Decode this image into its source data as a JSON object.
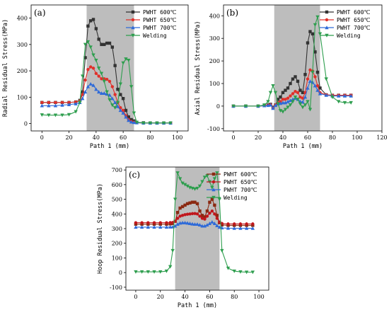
{
  "chart_data": [
    {
      "type": "line",
      "panel_label": "(a)",
      "xlabel": "Path 1 (mm)",
      "ylabel": "Radial Residual Stress(MPa)",
      "xlim": [
        -8,
        108
      ],
      "ylim": [
        -28,
        450
      ],
      "xticks": [
        0,
        20,
        40,
        60,
        80,
        100
      ],
      "yticks": [
        0,
        100,
        200,
        300,
        400
      ],
      "shaded_region": [
        33,
        68
      ],
      "legend_position": "top-right",
      "series": [
        {
          "name": "PWHT 600℃",
          "color": "#333333",
          "marker": "square",
          "x": [
            0,
            5,
            10,
            15,
            20,
            25,
            28,
            30,
            32,
            34,
            36,
            38,
            40,
            42,
            44,
            46,
            48,
            50,
            52,
            54,
            56,
            58,
            60,
            62,
            64,
            66,
            68,
            70,
            75,
            80,
            85,
            90,
            95
          ],
          "y": [
            80,
            80,
            80,
            80,
            80,
            82,
            88,
            120,
            250,
            370,
            390,
            395,
            360,
            320,
            300,
            300,
            305,
            305,
            290,
            220,
            130,
            110,
            95,
            50,
            25,
            15,
            10,
            5,
            3,
            2,
            2,
            2,
            2
          ]
        },
        {
          "name": "PWHT 650℃",
          "color": "#e0302a",
          "marker": "circle",
          "x": [
            0,
            5,
            10,
            15,
            20,
            25,
            28,
            30,
            32,
            34,
            36,
            38,
            40,
            42,
            44,
            46,
            48,
            50,
            52,
            54,
            56,
            58,
            60,
            62,
            64,
            66,
            68,
            70,
            75,
            80,
            85,
            90,
            95
          ],
          "y": [
            80,
            80,
            80,
            80,
            80,
            82,
            86,
            110,
            165,
            205,
            215,
            210,
            190,
            180,
            170,
            170,
            168,
            160,
            140,
            110,
            80,
            60,
            50,
            30,
            15,
            8,
            5,
            3,
            2,
            2,
            2,
            2,
            2
          ]
        },
        {
          "name": "PWHT 700℃",
          "color": "#2f6bd8",
          "marker": "triangle",
          "x": [
            0,
            5,
            10,
            15,
            20,
            25,
            28,
            30,
            32,
            34,
            36,
            38,
            40,
            42,
            44,
            46,
            48,
            50,
            52,
            54,
            56,
            58,
            60,
            62,
            64,
            66,
            68,
            70,
            75,
            80,
            85,
            90,
            95
          ],
          "y": [
            68,
            68,
            68,
            70,
            72,
            75,
            80,
            95,
            120,
            140,
            150,
            145,
            130,
            120,
            115,
            115,
            112,
            108,
            95,
            80,
            65,
            50,
            40,
            25,
            12,
            6,
            4,
            3,
            2,
            2,
            2,
            2,
            2
          ]
        },
        {
          "name": "Welding",
          "color": "#2e9e4e",
          "marker": "down-triangle",
          "x": [
            0,
            5,
            10,
            15,
            20,
            25,
            28,
            30,
            32,
            34,
            36,
            38,
            40,
            42,
            44,
            46,
            48,
            50,
            52,
            54,
            56,
            58,
            60,
            62,
            64,
            66,
            68,
            70,
            75,
            80,
            85,
            90,
            95
          ],
          "y": [
            33,
            32,
            32,
            32,
            34,
            45,
            80,
            180,
            300,
            310,
            290,
            260,
            240,
            210,
            190,
            160,
            120,
            90,
            70,
            60,
            80,
            150,
            230,
            245,
            240,
            140,
            40,
            5,
            2,
            2,
            2,
            2,
            2
          ]
        }
      ]
    },
    {
      "type": "line",
      "panel_label": "(b)",
      "xlabel": "Path 1 (mm)",
      "ylabel": "Axial Residual Stress(MPa)",
      "xlim": [
        -8,
        120
      ],
      "ylim": [
        -110,
        448
      ],
      "xticks": [
        0,
        20,
        40,
        60,
        80,
        100,
        120
      ],
      "yticks": [
        -100,
        0,
        100,
        200,
        300,
        400
      ],
      "shaded_region": [
        33,
        70
      ],
      "legend_position": "top-right",
      "series": [
        {
          "name": "PWHT 600℃",
          "color": "#333333",
          "marker": "square",
          "x": [
            0,
            10,
            20,
            25,
            28,
            30,
            32,
            34,
            36,
            38,
            40,
            42,
            44,
            46,
            48,
            50,
            52,
            54,
            56,
            58,
            60,
            62,
            64,
            66,
            68,
            70,
            75,
            80,
            85,
            90,
            95
          ],
          "y": [
            0,
            0,
            0,
            2,
            5,
            8,
            -5,
            5,
            30,
            40,
            60,
            70,
            80,
            100,
            120,
            130,
            110,
            70,
            60,
            140,
            280,
            330,
            320,
            240,
            150,
            80,
            50,
            48,
            48,
            48,
            48
          ]
        },
        {
          "name": "PWHT 650℃",
          "color": "#e0302a",
          "marker": "circle",
          "x": [
            0,
            10,
            20,
            25,
            28,
            30,
            32,
            34,
            36,
            38,
            40,
            42,
            44,
            46,
            48,
            50,
            52,
            54,
            56,
            58,
            60,
            62,
            64,
            66,
            68,
            70,
            75,
            80,
            85,
            90,
            95
          ],
          "y": [
            0,
            0,
            0,
            2,
            4,
            6,
            -8,
            5,
            15,
            20,
            30,
            30,
            35,
            45,
            55,
            65,
            60,
            40,
            35,
            60,
            120,
            160,
            155,
            130,
            90,
            60,
            50,
            48,
            48,
            48,
            48
          ]
        },
        {
          "name": "PWHT 700℃",
          "color": "#2f6bd8",
          "marker": "triangle",
          "x": [
            0,
            10,
            20,
            25,
            28,
            30,
            32,
            34,
            36,
            38,
            40,
            42,
            44,
            46,
            48,
            50,
            52,
            54,
            56,
            58,
            60,
            62,
            64,
            66,
            68,
            70,
            75,
            80,
            85,
            90,
            95
          ],
          "y": [
            0,
            0,
            0,
            2,
            3,
            5,
            -10,
            3,
            10,
            12,
            15,
            15,
            20,
            25,
            30,
            35,
            30,
            20,
            18,
            40,
            80,
            110,
            105,
            90,
            70,
            55,
            48,
            45,
            45,
            45,
            45
          ]
        },
        {
          "name": "Welding",
          "color": "#2e9e4e",
          "marker": "down-triangle",
          "x": [
            0,
            10,
            20,
            25,
            28,
            30,
            32,
            34,
            36,
            38,
            40,
            42,
            44,
            46,
            48,
            50,
            52,
            54,
            56,
            58,
            60,
            62,
            64,
            66,
            68,
            70,
            75,
            80,
            85,
            90,
            95
          ],
          "y": [
            0,
            0,
            0,
            5,
            20,
            60,
            90,
            60,
            10,
            -20,
            -25,
            -15,
            -5,
            5,
            20,
            40,
            30,
            10,
            -5,
            5,
            20,
            -15,
            150,
            360,
            395,
            320,
            120,
            40,
            20,
            15,
            15
          ]
        }
      ]
    },
    {
      "type": "line",
      "panel_label": "(c)",
      "xlabel": "Path 1 (mm)",
      "ylabel": "Hoop Residual Stress(MPa)",
      "xlim": [
        -8,
        108
      ],
      "ylim": [
        -120,
        720
      ],
      "xticks": [
        0,
        20,
        40,
        60,
        80,
        100
      ],
      "yticks": [
        -100,
        0,
        100,
        200,
        300,
        400,
        500,
        600,
        700
      ],
      "shaded_region": [
        32,
        68
      ],
      "legend_position": "top-right",
      "series": [
        {
          "name": "PWHT 600℃",
          "color": "#8b2a12",
          "marker": "square",
          "x": [
            0,
            5,
            10,
            15,
            20,
            25,
            28,
            30,
            32,
            34,
            36,
            38,
            40,
            42,
            44,
            46,
            48,
            50,
            52,
            54,
            56,
            58,
            60,
            62,
            64,
            66,
            68,
            70,
            75,
            80,
            85,
            90,
            95
          ],
          "y": [
            330,
            330,
            330,
            330,
            330,
            330,
            332,
            335,
            350,
            410,
            440,
            450,
            460,
            470,
            475,
            480,
            480,
            470,
            420,
            390,
            380,
            420,
            480,
            500,
            460,
            390,
            340,
            325,
            322,
            322,
            322,
            322,
            322
          ]
        },
        {
          "name": "PWHT 650℃",
          "color": "#c0161c",
          "marker": "circle",
          "x": [
            0,
            5,
            10,
            15,
            20,
            25,
            28,
            30,
            32,
            34,
            36,
            38,
            40,
            42,
            44,
            46,
            48,
            50,
            52,
            54,
            56,
            58,
            60,
            62,
            64,
            66,
            68,
            70,
            75,
            80,
            85,
            90,
            95
          ],
          "y": [
            340,
            340,
            340,
            340,
            340,
            340,
            341,
            342,
            350,
            370,
            385,
            390,
            395,
            398,
            400,
            402,
            403,
            400,
            385,
            370,
            365,
            385,
            405,
            420,
            400,
            370,
            345,
            335,
            332,
            332,
            332,
            332,
            332
          ]
        },
        {
          "name": "PWHT 700℃",
          "color": "#2f6bd8",
          "marker": "triangle",
          "x": [
            0,
            5,
            10,
            15,
            20,
            25,
            28,
            30,
            32,
            34,
            36,
            38,
            40,
            42,
            44,
            46,
            48,
            50,
            52,
            54,
            56,
            58,
            60,
            62,
            64,
            66,
            68,
            70,
            75,
            80,
            85,
            90,
            95
          ],
          "y": [
            310,
            310,
            310,
            310,
            310,
            310,
            311,
            312,
            318,
            330,
            338,
            340,
            340,
            338,
            335,
            332,
            330,
            330,
            325,
            318,
            318,
            325,
            335,
            345,
            335,
            320,
            310,
            305,
            303,
            302,
            302,
            302,
            302
          ]
        },
        {
          "name": "Welding",
          "color": "#2e9e4e",
          "marker": "down-triangle",
          "x": [
            0,
            5,
            10,
            15,
            20,
            25,
            28,
            30,
            32,
            34,
            36,
            38,
            40,
            42,
            44,
            46,
            48,
            50,
            52,
            54,
            56,
            58,
            60,
            62,
            64,
            66,
            68,
            70,
            75,
            80,
            85,
            90,
            95
          ],
          "y": [
            5,
            5,
            5,
            5,
            5,
            10,
            40,
            150,
            500,
            680,
            640,
            610,
            600,
            590,
            580,
            575,
            570,
            575,
            590,
            620,
            650,
            660,
            620,
            580,
            640,
            680,
            500,
            150,
            30,
            10,
            5,
            3,
            3
          ]
        }
      ]
    }
  ]
}
